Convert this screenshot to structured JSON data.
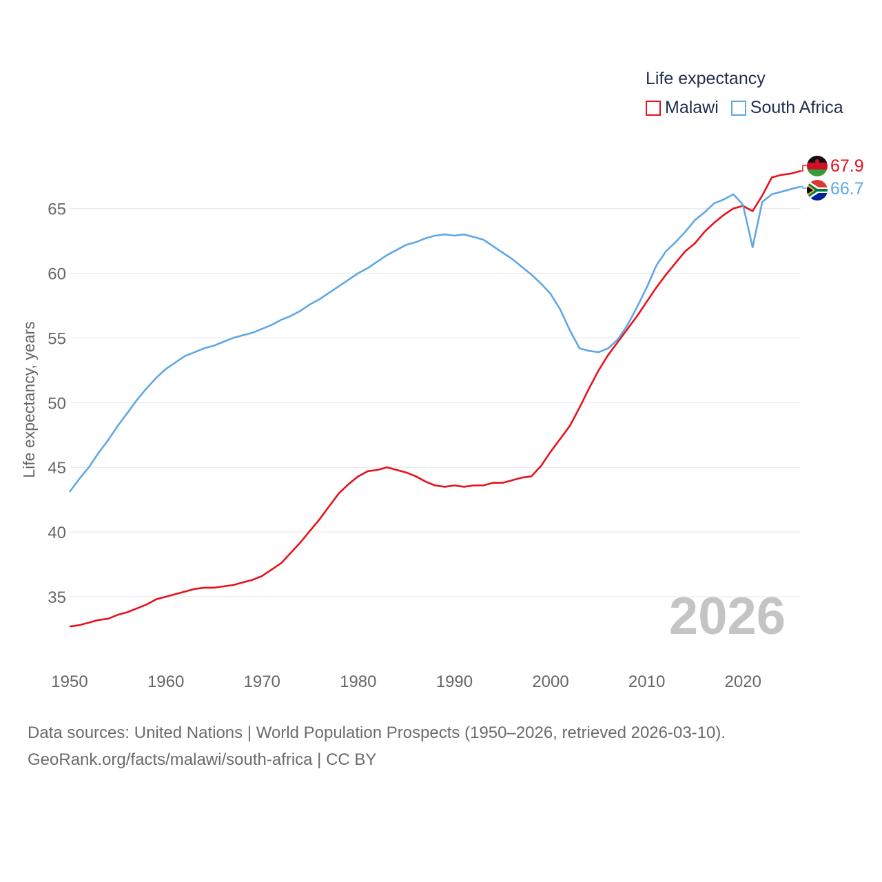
{
  "legend": {
    "title": "Life expectancy",
    "items": [
      {
        "label": "Malawi",
        "color": "#e8101a"
      },
      {
        "label": "South Africa",
        "color": "#5ea7e6"
      }
    ]
  },
  "footer": {
    "line1": "Data sources: United Nations | World Population Prospects (1950–2026, retrieved 2026-03-10).",
    "line2": "GeoRank.org/facts/malawi/south-africa | CC BY"
  },
  "chart_data": {
    "type": "line",
    "title": "Life expectancy",
    "ylabel": "Life expectancy, years",
    "xlabel": "",
    "xlim": [
      1950,
      2026
    ],
    "ylim": [
      31,
      68
    ],
    "yticks": [
      35,
      40,
      45,
      50,
      55,
      60,
      65
    ],
    "xticks": [
      1950,
      1960,
      1970,
      1980,
      1990,
      2000,
      2010,
      2020
    ],
    "year_label": "2026",
    "x": [
      1950,
      1951,
      1952,
      1953,
      1954,
      1955,
      1956,
      1957,
      1958,
      1959,
      1960,
      1961,
      1962,
      1963,
      1964,
      1965,
      1966,
      1967,
      1968,
      1969,
      1970,
      1971,
      1972,
      1973,
      1974,
      1975,
      1976,
      1977,
      1978,
      1979,
      1980,
      1981,
      1982,
      1983,
      1984,
      1985,
      1986,
      1987,
      1988,
      1989,
      1990,
      1991,
      1992,
      1993,
      1994,
      1995,
      1996,
      1997,
      1998,
      1999,
      2000,
      2001,
      2002,
      2003,
      2004,
      2005,
      2006,
      2007,
      2008,
      2009,
      2010,
      2011,
      2012,
      2013,
      2014,
      2015,
      2016,
      2017,
      2018,
      2019,
      2020,
      2021,
      2022,
      2023,
      2024,
      2025,
      2026
    ],
    "series": [
      {
        "name": "Malawi",
        "color": "#e8101a",
        "end_label": "67.9",
        "values": [
          32.7,
          32.8,
          33.0,
          33.2,
          33.3,
          33.6,
          33.8,
          34.1,
          34.4,
          34.8,
          35.0,
          35.2,
          35.4,
          35.6,
          35.7,
          35.7,
          35.8,
          35.9,
          36.1,
          36.3,
          36.6,
          37.1,
          37.6,
          38.4,
          39.2,
          40.1,
          41.0,
          42.0,
          43.0,
          43.7,
          44.3,
          44.7,
          44.8,
          45.0,
          44.8,
          44.6,
          44.3,
          43.9,
          43.6,
          43.5,
          43.6,
          43.5,
          43.6,
          43.6,
          43.8,
          43.8,
          44.0,
          44.2,
          44.3,
          45.1,
          46.2,
          47.2,
          48.2,
          49.6,
          51.1,
          52.5,
          53.7,
          54.7,
          55.7,
          56.7,
          57.8,
          58.9,
          59.9,
          60.8,
          61.7,
          62.3,
          63.2,
          63.9,
          64.5,
          65.0,
          65.2,
          64.8,
          66.0,
          67.4,
          67.6,
          67.7,
          67.9
        ]
      },
      {
        "name": "South Africa",
        "color": "#5ea7e6",
        "end_label": "66.7",
        "values": [
          43.1,
          44.1,
          45.0,
          46.1,
          47.1,
          48.2,
          49.2,
          50.2,
          51.1,
          51.9,
          52.6,
          53.1,
          53.6,
          53.9,
          54.2,
          54.4,
          54.7,
          55.0,
          55.2,
          55.4,
          55.7,
          56.0,
          56.4,
          56.7,
          57.1,
          57.6,
          58.0,
          58.5,
          59.0,
          59.5,
          60.0,
          60.4,
          60.9,
          61.4,
          61.8,
          62.2,
          62.4,
          62.7,
          62.9,
          63.0,
          62.9,
          63.0,
          62.8,
          62.6,
          62.1,
          61.6,
          61.1,
          60.5,
          59.9,
          59.2,
          58.4,
          57.2,
          55.6,
          54.2,
          54.0,
          53.9,
          54.2,
          54.9,
          56.0,
          57.4,
          58.9,
          60.6,
          61.7,
          62.4,
          63.2,
          64.1,
          64.7,
          65.4,
          65.7,
          66.1,
          65.3,
          62.0,
          65.5,
          66.1,
          66.3,
          66.5,
          66.7
        ]
      }
    ]
  }
}
